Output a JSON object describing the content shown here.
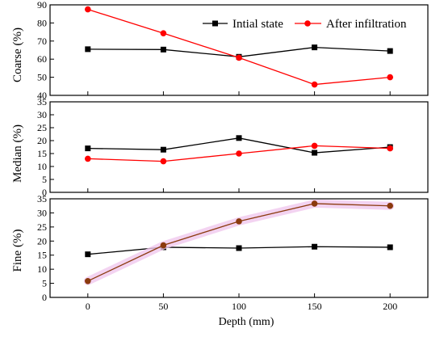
{
  "chart_data": {
    "type": "line",
    "x": [
      0,
      50,
      100,
      150,
      200
    ],
    "xlabel": "Depth (mm)",
    "xticks": [
      "0",
      "50",
      "100",
      "150",
      "200"
    ],
    "legend": {
      "placement": "top-right",
      "entries": [
        "Intial state",
        "After infiltration"
      ]
    },
    "series_colors": {
      "Intial state": "#000000",
      "After infiltration": "#ff0000",
      "After infiltration (Fine)": "#8b3a0e"
    },
    "panels": [
      {
        "ylabel": "Coarse (%)",
        "ylim": [
          40,
          90
        ],
        "yticks": [
          "40",
          "50",
          "60",
          "70",
          "80",
          "90"
        ],
        "series": [
          {
            "name": "Intial state",
            "values": [
              65.5,
              65.3,
              61.3,
              66.5,
              64.5
            ]
          },
          {
            "name": "After infiltration",
            "values": [
              87.5,
              74.3,
              60.8,
              46.0,
              50.0
            ]
          }
        ]
      },
      {
        "ylabel": "Median (%)",
        "ylim": [
          0,
          35
        ],
        "yticks": [
          "0",
          "5",
          "10",
          "15",
          "20",
          "25",
          "30",
          "35"
        ],
        "series": [
          {
            "name": "Intial state",
            "values": [
              17.0,
              16.5,
              21.0,
              15.3,
              17.5
            ]
          },
          {
            "name": "After infiltration",
            "values": [
              13.0,
              12.0,
              15.0,
              18.0,
              17.0
            ]
          }
        ]
      },
      {
        "ylabel": "Fine (%)",
        "ylim": [
          0,
          35
        ],
        "yticks": [
          "0",
          "5",
          "10",
          "15",
          "20",
          "25",
          "30",
          "35"
        ],
        "series": [
          {
            "name": "Intial state",
            "values": [
              15.3,
              17.8,
              17.5,
              18.0,
              17.8
            ]
          },
          {
            "name": "After infiltration",
            "values": [
              5.8,
              18.5,
              27.0,
              33.3,
              32.5
            ]
          }
        ]
      }
    ]
  }
}
